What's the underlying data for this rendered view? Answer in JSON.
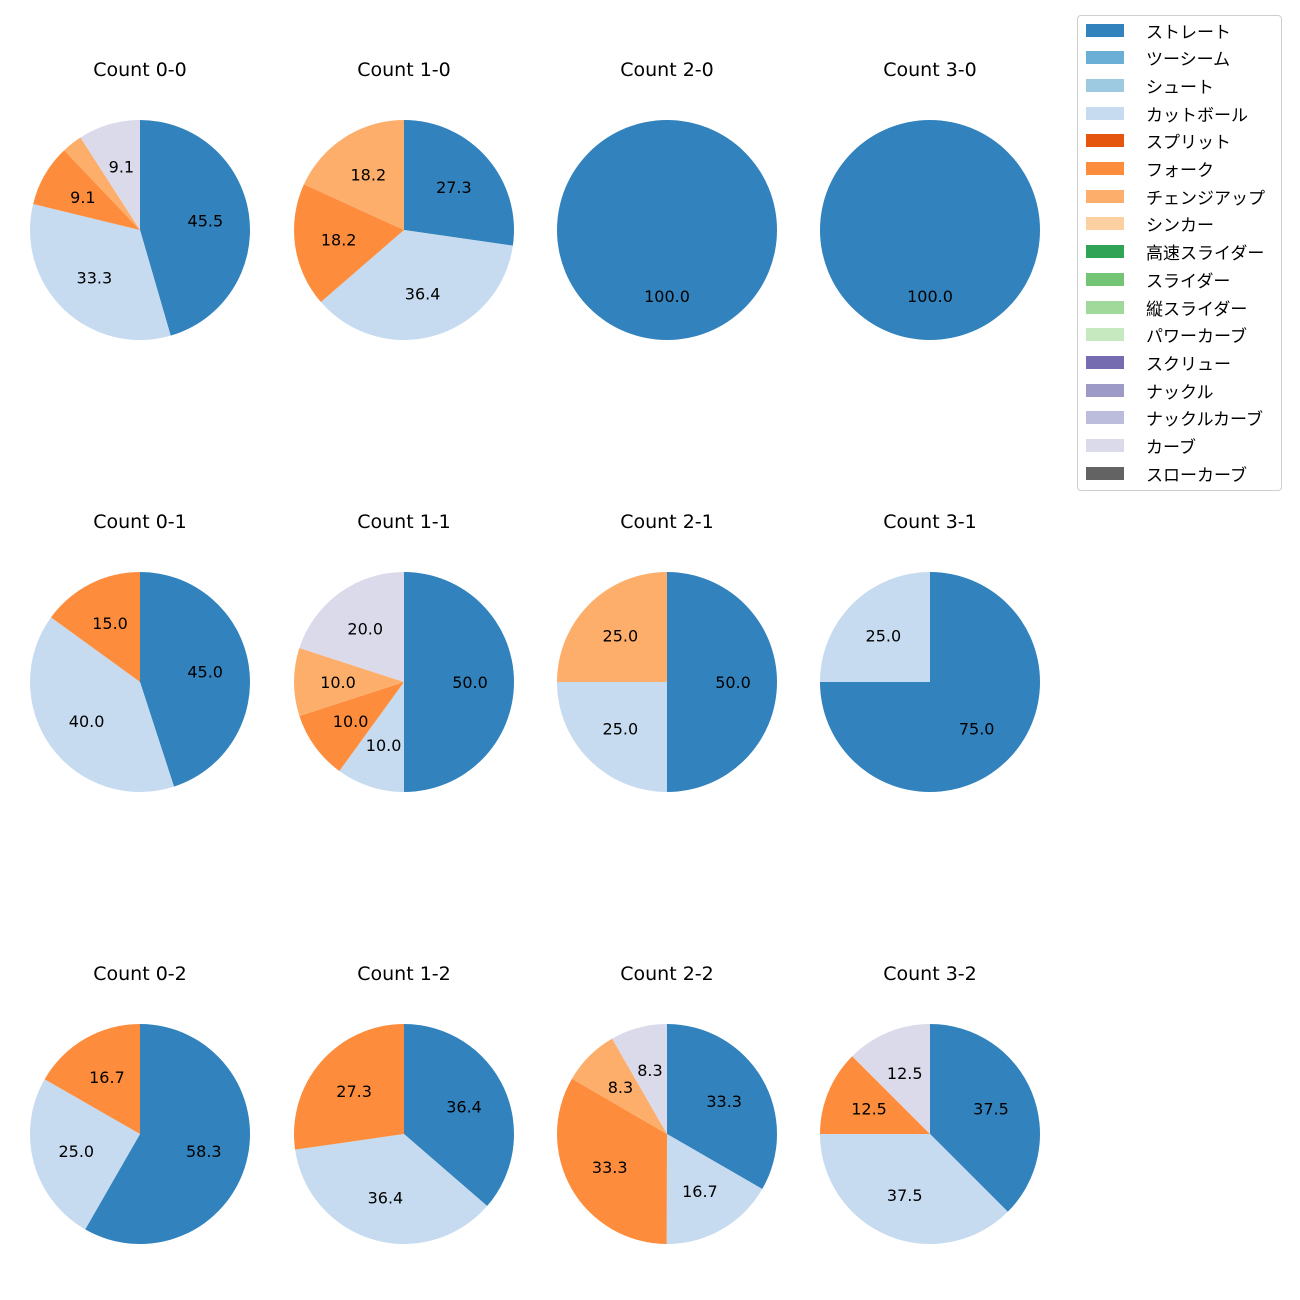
{
  "pitch_types": [
    {
      "name": "ストレート",
      "color": "#3182bd"
    },
    {
      "name": "ツーシーム",
      "color": "#6baed6"
    },
    {
      "name": "シュート",
      "color": "#9ecae1"
    },
    {
      "name": "カットボール",
      "color": "#c6dbef"
    },
    {
      "name": "スプリット",
      "color": "#e6550d"
    },
    {
      "name": "フォーク",
      "color": "#fd8d3c"
    },
    {
      "name": "チェンジアップ",
      "color": "#fdae6b"
    },
    {
      "name": "シンカー",
      "color": "#fdd0a2"
    },
    {
      "name": "高速スライダー",
      "color": "#31a354"
    },
    {
      "name": "スライダー",
      "color": "#74c476"
    },
    {
      "name": "縦スライダー",
      "color": "#a1d99b"
    },
    {
      "name": "パワーカーブ",
      "color": "#c7e9c0"
    },
    {
      "name": "スクリュー",
      "color": "#756bb1"
    },
    {
      "name": "ナックル",
      "color": "#9e9ac8"
    },
    {
      "name": "ナックルカーブ",
      "color": "#bcbddc"
    },
    {
      "name": "カーブ",
      "color": "#dadaeb"
    },
    {
      "name": "スローカーブ",
      "color": "#636363"
    }
  ],
  "chart_data": [
    {
      "type": "pie",
      "title": "Count 0-0",
      "slices": [
        {
          "pitch": "ストレート",
          "value": 45.5,
          "label": "45.5"
        },
        {
          "pitch": "カットボール",
          "value": 33.3,
          "label": "33.3"
        },
        {
          "pitch": "フォーク",
          "value": 9.1,
          "label": "9.1"
        },
        {
          "pitch": "チェンジアップ",
          "value": 3.0,
          "label": ""
        },
        {
          "pitch": "カーブ",
          "value": 9.1,
          "label": "9.1"
        }
      ]
    },
    {
      "type": "pie",
      "title": "Count 1-0",
      "slices": [
        {
          "pitch": "ストレート",
          "value": 27.3,
          "label": "27.3"
        },
        {
          "pitch": "カットボール",
          "value": 36.4,
          "label": "36.4"
        },
        {
          "pitch": "フォーク",
          "value": 18.2,
          "label": "18.2"
        },
        {
          "pitch": "チェンジアップ",
          "value": 18.2,
          "label": "18.2"
        }
      ]
    },
    {
      "type": "pie",
      "title": "Count 2-0",
      "slices": [
        {
          "pitch": "ストレート",
          "value": 100.0,
          "label": "100.0"
        }
      ]
    },
    {
      "type": "pie",
      "title": "Count 3-0",
      "slices": [
        {
          "pitch": "ストレート",
          "value": 100.0,
          "label": "100.0"
        }
      ]
    },
    {
      "type": "pie",
      "title": "Count 0-1",
      "slices": [
        {
          "pitch": "ストレート",
          "value": 45.0,
          "label": "45.0"
        },
        {
          "pitch": "カットボール",
          "value": 40.0,
          "label": "40.0"
        },
        {
          "pitch": "フォーク",
          "value": 15.0,
          "label": "15.0"
        }
      ]
    },
    {
      "type": "pie",
      "title": "Count 1-1",
      "slices": [
        {
          "pitch": "ストレート",
          "value": 50.0,
          "label": "50.0"
        },
        {
          "pitch": "カットボール",
          "value": 10.0,
          "label": "10.0"
        },
        {
          "pitch": "フォーク",
          "value": 10.0,
          "label": "10.0"
        },
        {
          "pitch": "チェンジアップ",
          "value": 10.0,
          "label": "10.0"
        },
        {
          "pitch": "カーブ",
          "value": 20.0,
          "label": "20.0"
        }
      ]
    },
    {
      "type": "pie",
      "title": "Count 2-1",
      "slices": [
        {
          "pitch": "ストレート",
          "value": 50.0,
          "label": "50.0"
        },
        {
          "pitch": "カットボール",
          "value": 25.0,
          "label": "25.0"
        },
        {
          "pitch": "チェンジアップ",
          "value": 25.0,
          "label": "25.0"
        }
      ]
    },
    {
      "type": "pie",
      "title": "Count 3-1",
      "slices": [
        {
          "pitch": "ストレート",
          "value": 75.0,
          "label": "75.0"
        },
        {
          "pitch": "カットボール",
          "value": 25.0,
          "label": "25.0"
        }
      ]
    },
    {
      "type": "pie",
      "title": "Count 0-2",
      "slices": [
        {
          "pitch": "ストレート",
          "value": 58.3,
          "label": "58.3"
        },
        {
          "pitch": "カットボール",
          "value": 25.0,
          "label": "25.0"
        },
        {
          "pitch": "フォーク",
          "value": 16.7,
          "label": "16.7"
        }
      ]
    },
    {
      "type": "pie",
      "title": "Count 1-2",
      "slices": [
        {
          "pitch": "ストレート",
          "value": 36.4,
          "label": "36.4"
        },
        {
          "pitch": "カットボール",
          "value": 36.4,
          "label": "36.4"
        },
        {
          "pitch": "フォーク",
          "value": 27.3,
          "label": "27.3"
        }
      ]
    },
    {
      "type": "pie",
      "title": "Count 2-2",
      "slices": [
        {
          "pitch": "ストレート",
          "value": 33.3,
          "label": "33.3"
        },
        {
          "pitch": "カットボール",
          "value": 16.7,
          "label": "16.7"
        },
        {
          "pitch": "フォーク",
          "value": 33.3,
          "label": "33.3"
        },
        {
          "pitch": "チェンジアップ",
          "value": 8.3,
          "label": "8.3"
        },
        {
          "pitch": "カーブ",
          "value": 8.3,
          "label": "8.3"
        }
      ]
    },
    {
      "type": "pie",
      "title": "Count 3-2",
      "slices": [
        {
          "pitch": "ストレート",
          "value": 37.5,
          "label": "37.5"
        },
        {
          "pitch": "カットボール",
          "value": 37.5,
          "label": "37.5"
        },
        {
          "pitch": "フォーク",
          "value": 12.5,
          "label": "12.5"
        },
        {
          "pitch": "カーブ",
          "value": 12.5,
          "label": "12.5"
        }
      ]
    }
  ]
}
